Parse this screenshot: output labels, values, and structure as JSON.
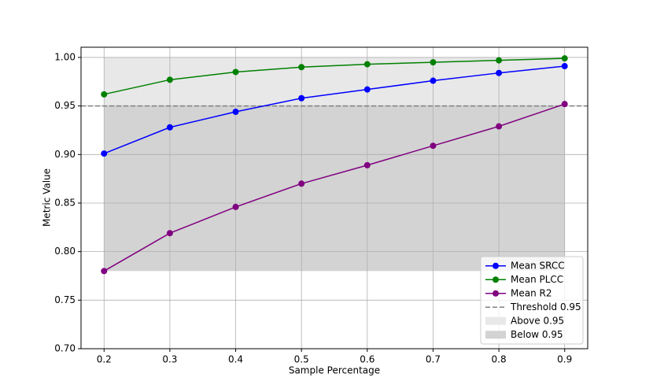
{
  "chart_data": {
    "type": "line",
    "x_label": "Sample Percentage",
    "y_label": "Metric Value",
    "x": [
      0.2,
      0.3,
      0.4,
      0.5,
      0.6,
      0.7,
      0.8,
      0.9
    ],
    "series": [
      {
        "name": "Mean SRCC",
        "color": "#0000ff",
        "values": [
          0.901,
          0.928,
          0.944,
          0.958,
          0.967,
          0.976,
          0.984,
          0.991
        ]
      },
      {
        "name": "Mean PLCC",
        "color": "#008000",
        "values": [
          0.962,
          0.977,
          0.985,
          0.99,
          0.993,
          0.995,
          0.997,
          0.999
        ]
      },
      {
        "name": "Mean R2",
        "color": "#800080",
        "values": [
          0.78,
          0.819,
          0.846,
          0.87,
          0.889,
          0.909,
          0.929,
          0.952
        ]
      }
    ],
    "threshold": {
      "name": "Threshold 0.95",
      "value": 0.95,
      "color": "#808080"
    },
    "fill_regions": [
      {
        "name": "Above 0.95",
        "range": [
          0.95,
          1.0
        ],
        "color": "#e8e8e8"
      },
      {
        "name": "Below 0.95",
        "range": [
          0.78,
          0.95
        ],
        "color": "#d3d3d3"
      }
    ],
    "xlim": [
      0.165,
      0.935
    ],
    "ylim": [
      0.7,
      1.0105
    ],
    "xticks": [
      0.2,
      0.3,
      0.4,
      0.5,
      0.6,
      0.7,
      0.8,
      0.9
    ],
    "yticks": [
      {
        "value": 0.7,
        "label": "0.70"
      },
      {
        "value": 0.75,
        "label": "0.75"
      },
      {
        "value": 0.8,
        "label": "0.80"
      },
      {
        "value": 0.85,
        "label": "0.85"
      },
      {
        "value": 0.9,
        "label": "0.90"
      },
      {
        "value": 0.95,
        "label": "0.95"
      },
      {
        "value": 1.0,
        "label": "1.00"
      }
    ],
    "grid": true,
    "legend_position": "lower right"
  }
}
